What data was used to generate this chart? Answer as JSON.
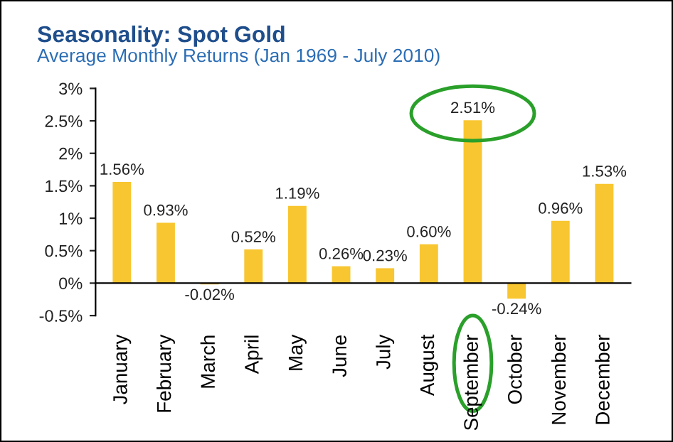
{
  "chart_data": {
    "type": "bar",
    "title": "Seasonality: Spot Gold",
    "subtitle": "Average Monthly Returns (Jan 1969 - July 2010)",
    "categories": [
      "January",
      "February",
      "March",
      "April",
      "May",
      "June",
      "July",
      "August",
      "September",
      "October",
      "November",
      "December"
    ],
    "values": [
      1.56,
      0.93,
      -0.02,
      0.52,
      1.19,
      0.26,
      0.23,
      0.6,
      2.51,
      -0.24,
      0.96,
      1.53
    ],
    "value_labels": [
      "1.56%",
      "0.93%",
      "-0.02%",
      "0.52%",
      "1.19%",
      "0.26%",
      "0.23%",
      "0.60%",
      "2.51%",
      "-0.24%",
      "0.96%",
      "1.53%"
    ],
    "color": "#f8c630",
    "ylim": [
      -0.5,
      3
    ],
    "yticks": [
      {
        "value": -0.5,
        "label": "-0.5%"
      },
      {
        "value": 0,
        "label": "0%"
      },
      {
        "value": 0.5,
        "label": "0.5%"
      },
      {
        "value": 1,
        "label": "1%"
      },
      {
        "value": 1.5,
        "label": "1.5%"
      },
      {
        "value": 2,
        "label": "2%"
      },
      {
        "value": 2.5,
        "label": "2.5%"
      },
      {
        "value": 3,
        "label": "3%"
      }
    ],
    "legend": false
  }
}
